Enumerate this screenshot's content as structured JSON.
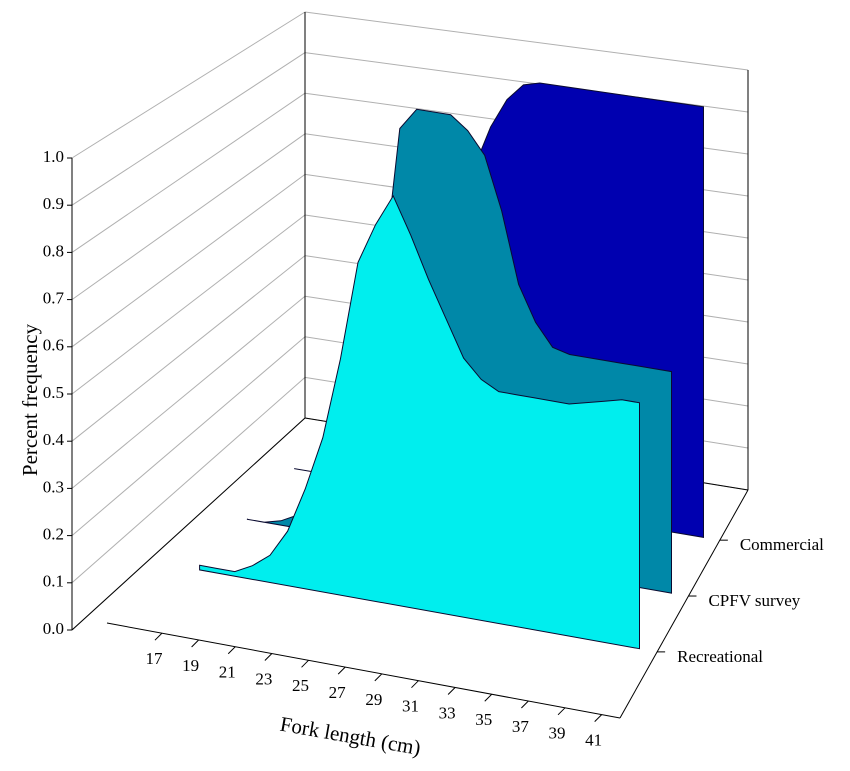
{
  "chart_data": {
    "type": "area3d",
    "xlabel": "Fork length (cm)",
    "ylabel": "Percent frequency",
    "x": [
      16,
      17,
      18,
      19,
      20,
      21,
      22,
      23,
      24,
      25,
      26,
      27,
      28,
      29,
      30,
      31,
      32,
      33,
      34,
      35,
      36,
      37,
      38,
      39,
      40,
      41
    ],
    "xlim": [
      14,
      42
    ],
    "xticks": [
      17,
      19,
      21,
      23,
      25,
      27,
      29,
      31,
      33,
      35,
      37,
      39,
      41
    ],
    "ylim": [
      0,
      1
    ],
    "yticks": [
      {
        "value": 0,
        "label": "0.0"
      },
      0.1,
      0.2,
      0.3,
      0.4,
      0.5,
      0.6,
      0.7,
      0.8,
      0.9,
      {
        "value": 1,
        "label": "1.0"
      }
    ],
    "grid": true,
    "series": [
      {
        "name": "Recreational",
        "color": "#00eeee",
        "values": [
          0.01,
          0.01,
          0.01,
          0.03,
          0.06,
          0.12,
          0.22,
          0.34,
          0.52,
          0.74,
          0.83,
          0.9,
          0.82,
          0.73,
          0.65,
          0.57,
          0.53,
          0.51,
          0.51,
          0.51,
          0.51,
          0.51,
          0.52,
          0.53,
          0.54,
          0.54
        ]
      },
      {
        "name": "CPFV survey",
        "color": "#0088a8",
        "values": [
          0,
          0,
          0.01,
          0.03,
          0.06,
          0.12,
          0.22,
          0.38,
          0.6,
          0.95,
          1,
          1,
          1,
          0.97,
          0.92,
          0.8,
          0.64,
          0.56,
          0.51,
          0.5,
          0.5,
          0.5,
          0.5,
          0.5,
          0.5,
          0.5
        ]
      },
      {
        "name": "Commercial",
        "color": "#0000b0",
        "values": [
          0,
          0,
          0.01,
          0.02,
          0.04,
          0.08,
          0.15,
          0.25,
          0.4,
          0.55,
          0.68,
          0.78,
          0.88,
          0.95,
          0.99,
          1,
          1,
          1,
          1,
          1,
          1,
          1,
          1,
          1,
          1,
          1
        ]
      }
    ]
  }
}
